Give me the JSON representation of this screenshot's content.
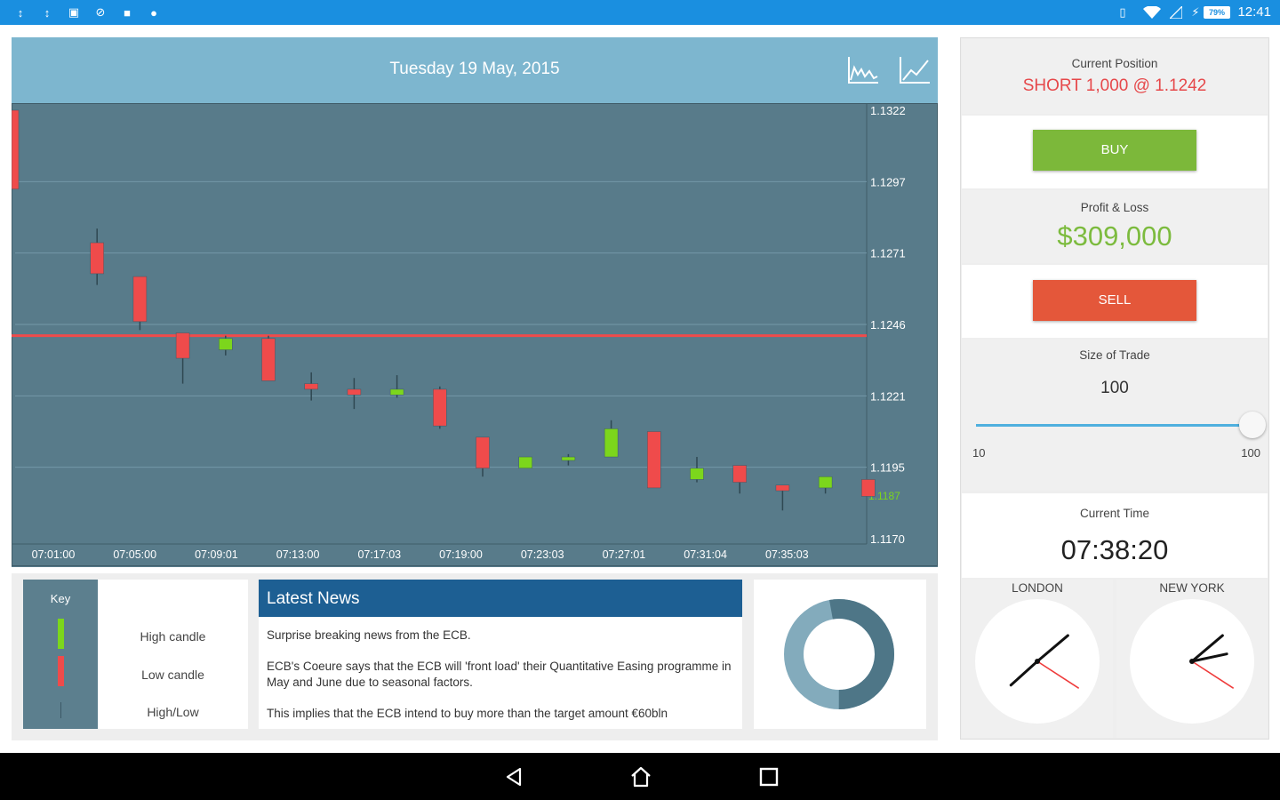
{
  "status_bar": {
    "time": "12:41",
    "battery": "79%",
    "left_icons": [
      "usb-icon",
      "usb-icon",
      "calendar-icon",
      "no-sync-icon",
      "camera-icon",
      "location-icon"
    ]
  },
  "chart": {
    "date": "Tuesday 19 May, 2015",
    "header_icons": [
      "area-chart-icon",
      "line-chart-icon"
    ],
    "y_ticks": [
      "1.1322",
      "1.1297",
      "1.1271",
      "1.1246",
      "1.1221",
      "1.1195",
      "1.1170"
    ],
    "x_ticks": [
      "07:01:00",
      "07:05:00",
      "07:09:01",
      "07:13:00",
      "07:17:03",
      "07:19:00",
      "07:23:03",
      "07:27:01",
      "07:31:04",
      "07:35:03"
    ],
    "current_price": "1.1187"
  },
  "chart_data": {
    "type": "candlestick",
    "y_range": [
      1.117,
      1.1322
    ],
    "position_line": 1.1242,
    "candles": [
      {
        "dir": "down",
        "open": 1.1322,
        "close": 1.1294,
        "high": 1.1322,
        "low": 1.1294
      },
      {
        "dir": "down",
        "open": 1.1275,
        "close": 1.1264,
        "high": 1.128,
        "low": 1.126
      },
      {
        "dir": "down",
        "open": 1.1263,
        "close": 1.1247,
        "high": 1.1263,
        "low": 1.1244
      },
      {
        "dir": "down",
        "open": 1.1243,
        "close": 1.1234,
        "high": 1.1243,
        "low": 1.1225
      },
      {
        "dir": "up",
        "open": 1.1237,
        "close": 1.1241,
        "high": 1.1242,
        "low": 1.1235
      },
      {
        "dir": "down",
        "open": 1.1241,
        "close": 1.1226,
        "high": 1.1242,
        "low": 1.1226
      },
      {
        "dir": "down",
        "open": 1.1225,
        "close": 1.1223,
        "high": 1.1229,
        "low": 1.1219
      },
      {
        "dir": "down",
        "open": 1.1223,
        "close": 1.1221,
        "high": 1.1227,
        "low": 1.1216
      },
      {
        "dir": "up",
        "open": 1.1221,
        "close": 1.1223,
        "high": 1.1228,
        "low": 1.122
      },
      {
        "dir": "down",
        "open": 1.1223,
        "close": 1.121,
        "high": 1.1224,
        "low": 1.1209
      },
      {
        "dir": "down",
        "open": 1.1206,
        "close": 1.1195,
        "high": 1.1206,
        "low": 1.1192
      },
      {
        "dir": "up",
        "open": 1.1195,
        "close": 1.1199,
        "high": 1.1199,
        "low": 1.1195
      },
      {
        "dir": "up",
        "open": 1.1198,
        "close": 1.1199,
        "high": 1.12,
        "low": 1.1196
      },
      {
        "dir": "up",
        "open": 1.1199,
        "close": 1.1209,
        "high": 1.1212,
        "low": 1.1199
      },
      {
        "dir": "down",
        "open": 1.1208,
        "close": 1.1188,
        "high": 1.1208,
        "low": 1.1188
      },
      {
        "dir": "up",
        "open": 1.1191,
        "close": 1.1195,
        "high": 1.1199,
        "low": 1.119
      },
      {
        "dir": "down",
        "open": 1.1196,
        "close": 1.119,
        "high": 1.1196,
        "low": 1.1186
      },
      {
        "dir": "down",
        "open": 1.1189,
        "close": 1.1187,
        "high": 1.1189,
        "low": 1.118
      },
      {
        "dir": "up",
        "open": 1.1188,
        "close": 1.1192,
        "high": 1.1192,
        "low": 1.1186
      },
      {
        "dir": "down",
        "open": 1.1191,
        "close": 1.1185,
        "high": 1.1191,
        "low": 1.1185
      }
    ]
  },
  "key": {
    "title": "Key",
    "items": [
      {
        "label": "High candle",
        "color": "#7cd61c"
      },
      {
        "label": "Low candle",
        "color": "#ef4b4b"
      },
      {
        "label": "High/Low",
        "color": "#3c5966"
      }
    ]
  },
  "news": {
    "title": "Latest News",
    "items": [
      "Surprise breaking news from the ECB.",
      "ECB's Coeure says that the ECB will 'front load' their Quantitative Easing programme in May and June due to seasonal factors.",
      "This implies that the ECB intend to buy more than the target amount €60bln"
    ]
  },
  "donut": {
    "value": 0.53,
    "colors": [
      "#4e7687",
      "#83abbc"
    ]
  },
  "position": {
    "label": "Current Position",
    "value": "SHORT 1,000 @ 1.1242"
  },
  "buy_label": "BUY",
  "pnl": {
    "label": "Profit & Loss",
    "value": "$309,000"
  },
  "sell_label": "SELL",
  "trade_size": {
    "label": "Size of Trade",
    "value": "100",
    "min": "10",
    "max": "100"
  },
  "current_time": {
    "label": "Current Time",
    "value": "07:38:20"
  },
  "clocks": [
    {
      "label": "LONDON",
      "hour": 7.6,
      "minute": 38.3
    },
    {
      "label": "NEW YORK",
      "hour": 2.6,
      "minute": 38.3
    }
  ],
  "colors": {
    "accent": "#1a8fe0",
    "chart_bg": "#587b8a",
    "header_bg": "#7db6cf",
    "up": "#7cd61c",
    "down": "#ef4b4b",
    "news_header": "#1d5f93"
  }
}
